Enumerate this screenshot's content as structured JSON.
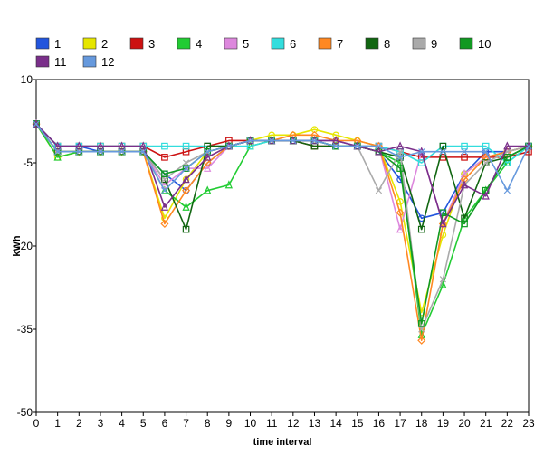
{
  "chart_data": {
    "type": "line",
    "title": "",
    "xlabel": "time interval",
    "ylabel": "kWh",
    "xlim": [
      0,
      23
    ],
    "ylim": [
      -50,
      10
    ],
    "yticks": [
      10,
      -5,
      -20,
      -35,
      -50
    ],
    "grid": false,
    "legend_position": "top",
    "x": [
      0,
      1,
      2,
      3,
      4,
      5,
      6,
      7,
      8,
      9,
      10,
      11,
      12,
      13,
      14,
      15,
      16,
      17,
      18,
      19,
      20,
      21,
      22,
      23
    ],
    "series": [
      {
        "name": "1",
        "color": "#2255dd",
        "marker": "circle",
        "values": [
          2,
          -2,
          -2,
          -3,
          -3,
          -3,
          -7,
          -10,
          -5,
          -2,
          -1,
          -1,
          -1,
          -1,
          -1,
          -2,
          -3,
          -8,
          -15,
          -14,
          -7,
          -3,
          -3,
          -2
        ]
      },
      {
        "name": "2",
        "color": "#e6e600",
        "marker": "circle",
        "values": [
          2,
          -4,
          -3,
          -3,
          -3,
          -3,
          -15,
          -8,
          -3,
          -2,
          -1,
          0,
          0,
          1,
          0,
          -1,
          -2,
          -12,
          -32,
          -18,
          -7,
          -4,
          -3,
          -2
        ]
      },
      {
        "name": "3",
        "color": "#cc1111",
        "marker": "square",
        "values": [
          2,
          -2,
          -2,
          -2,
          -2,
          -2,
          -4,
          -3,
          -2,
          -1,
          -1,
          -1,
          -1,
          -2,
          -2,
          -2,
          -2,
          -3,
          -4,
          -4,
          -4,
          -4,
          -4,
          -3
        ]
      },
      {
        "name": "4",
        "color": "#22cc33",
        "marker": "triangle",
        "values": [
          2,
          -4,
          -3,
          -3,
          -3,
          -3,
          -10,
          -13,
          -10,
          -9,
          -2,
          -1,
          -1,
          -1,
          -2,
          -2,
          -3,
          -5,
          -36,
          -27,
          -15,
          -10,
          -5,
          -2
        ]
      },
      {
        "name": "5",
        "color": "#dd88dd",
        "marker": "triangle",
        "values": [
          2,
          -3,
          -3,
          -3,
          -3,
          -3,
          -9,
          -6,
          -6,
          -2,
          -1,
          -1,
          -1,
          -1,
          -1,
          -2,
          -2,
          -17,
          -3,
          -16,
          -7,
          -4,
          -3,
          -2
        ]
      },
      {
        "name": "6",
        "color": "#33dddd",
        "marker": "square",
        "values": [
          2,
          -2,
          -2,
          -2,
          -2,
          -2,
          -2,
          -2,
          -2,
          -2,
          -2,
          -1,
          -1,
          -1,
          -2,
          -2,
          -2,
          -3,
          -5,
          -2,
          -2,
          -2,
          -5,
          -2
        ]
      },
      {
        "name": "7",
        "color": "#ff8822",
        "marker": "diamond",
        "values": [
          2,
          -3,
          -3,
          -3,
          -3,
          -3,
          -16,
          -10,
          -5,
          -2,
          -1,
          -1,
          0,
          0,
          -1,
          -1,
          -2,
          -14,
          -37,
          -16,
          -8,
          -4,
          -3,
          -2
        ]
      },
      {
        "name": "8",
        "color": "#116611",
        "marker": "square",
        "values": [
          2,
          -3,
          -3,
          -3,
          -3,
          -3,
          -8,
          -17,
          -2,
          -2,
          -1,
          -1,
          -1,
          -2,
          -2,
          -2,
          -3,
          -4,
          -17,
          -2,
          -15,
          -5,
          -4,
          -2
        ]
      },
      {
        "name": "9",
        "color": "#aaaaaa",
        "marker": "x",
        "values": [
          2,
          -3,
          -3,
          -3,
          -3,
          -3,
          -8,
          -5,
          -3,
          -2,
          -1,
          -1,
          -1,
          -1,
          -2,
          -2,
          -10,
          -3,
          -35,
          -26,
          -9,
          -5,
          -3,
          -2
        ]
      },
      {
        "name": "10",
        "color": "#119922",
        "marker": "square",
        "values": [
          2,
          -3,
          -3,
          -3,
          -3,
          -3,
          -7,
          -6,
          -3,
          -2,
          -1,
          -1,
          -1,
          -1,
          -2,
          -2,
          -3,
          -6,
          -34,
          -14,
          -16,
          -10,
          -4,
          -2
        ]
      },
      {
        "name": "11",
        "color": "#7a2f8a",
        "marker": "triangle",
        "values": [
          2,
          -2,
          -2,
          -2,
          -2,
          -2,
          -13,
          -8,
          -4,
          -2,
          -1,
          -1,
          -1,
          -1,
          -1,
          -2,
          -3,
          -2,
          -3,
          -16,
          -9,
          -11,
          -2,
          -2
        ]
      },
      {
        "name": "12",
        "color": "#6699dd",
        "marker": "x",
        "values": [
          2,
          -3,
          -3,
          -3,
          -3,
          -3,
          -10,
          -6,
          -3,
          -2,
          -1,
          -1,
          -1,
          -1,
          -2,
          -2,
          -2,
          -4,
          -3,
          -3,
          -3,
          -3,
          -10,
          -2
        ]
      }
    ]
  }
}
